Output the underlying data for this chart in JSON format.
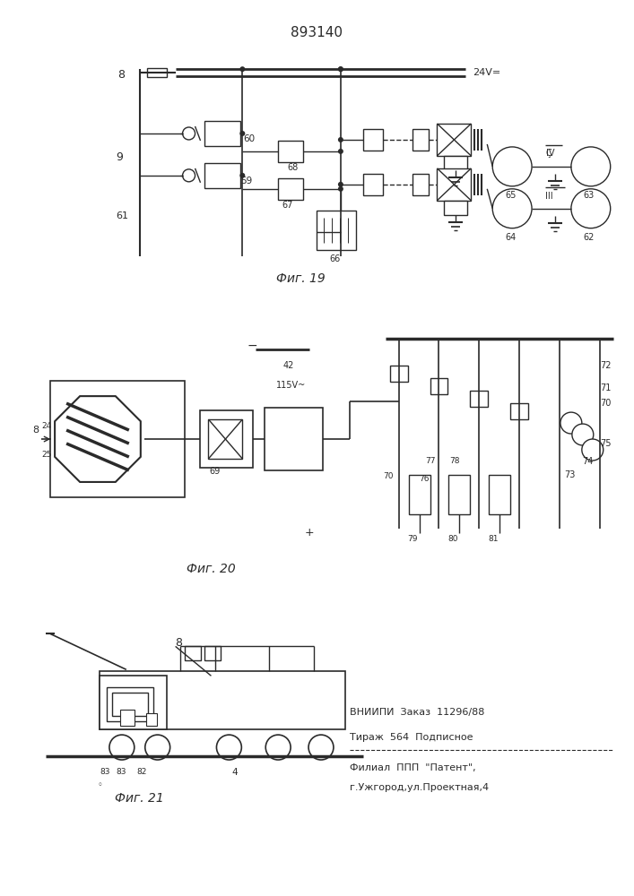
{
  "title": "893140",
  "background_color": "#ffffff",
  "line_color": "#2a2a2a",
  "fig_labels": [
    "Фиг. 19",
    "Фиг. 20",
    "Фиг. 21"
  ],
  "patent_lines": [
    "ВНИИПИ  Заказ  11296/88",
    "Тираж  564  Подписное",
    "Филиал  ППП  \"Патент\",",
    "г.Ужгород,ул.Проектная,4"
  ]
}
